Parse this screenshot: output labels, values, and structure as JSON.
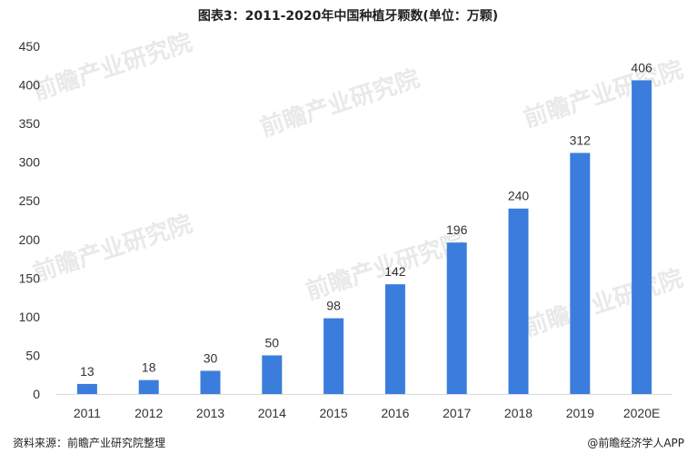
{
  "chart_data": {
    "type": "bar",
    "title": "图表3：2011-2020年中国种植牙颗数(单位：万颗)",
    "categories": [
      "2011",
      "2012",
      "2013",
      "2014",
      "2015",
      "2016",
      "2017",
      "2018",
      "2019",
      "2020E"
    ],
    "values": [
      13,
      18,
      30,
      50,
      98,
      142,
      196,
      240,
      312,
      406
    ],
    "yticks": [
      0,
      50,
      100,
      150,
      200,
      250,
      300,
      350,
      400,
      450
    ],
    "ylim": [
      0,
      450
    ],
    "xlabel": "",
    "ylabel": "",
    "grid": false,
    "bar_color": "#3b7ddd",
    "data_labels": true
  },
  "footer": {
    "source": "资料来源：前瞻产业研究院整理",
    "brand": "@前瞻经济学人APP"
  },
  "watermark": {
    "text": "前瞻产业研究院"
  }
}
